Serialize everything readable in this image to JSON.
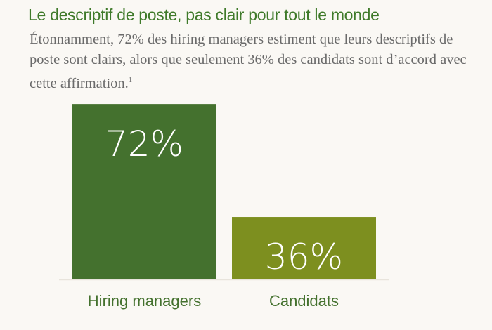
{
  "title": "Le descriptif de poste, pas clair pour tout le monde",
  "subtitle": "Étonnamment, 72% des hiring managers estiment que leurs descriptifs de poste sont clairs, alors que seulement 36% des candidats sont d’accord avec cette affirmation.",
  "footnote_marker": "1",
  "colors": {
    "background": "#faf8f4",
    "title": "#3f7a2a",
    "bar1": "#44712e",
    "bar2": "#7d8f1f",
    "category_text": "#44712e"
  },
  "chart_data": {
    "type": "bar",
    "categories": [
      "Hiring managers",
      "Candidats"
    ],
    "values": [
      72,
      36
    ],
    "data_labels": [
      "72%",
      "36%"
    ],
    "unit": "%",
    "grid": false,
    "legend": "none"
  }
}
